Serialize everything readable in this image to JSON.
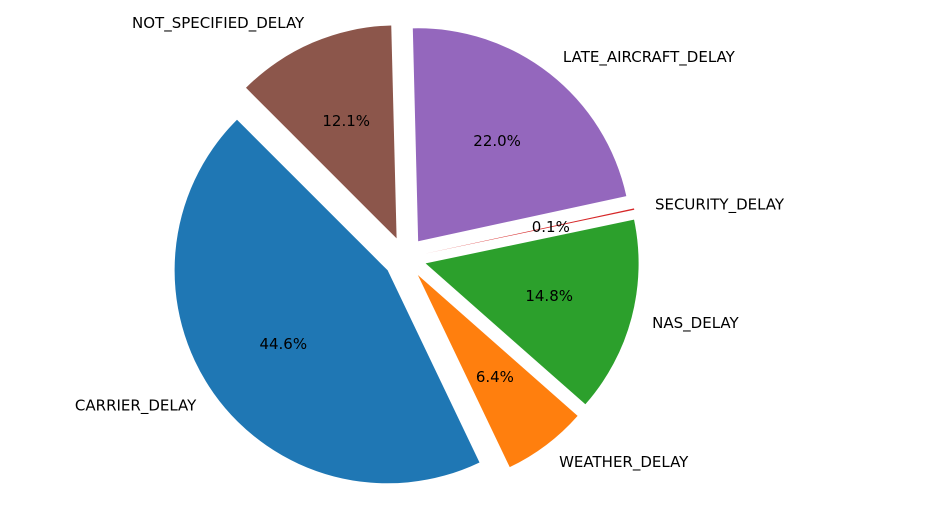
{
  "chart_data": {
    "type": "pie",
    "title": "",
    "slices": [
      {
        "label": "CARRIER_DELAY",
        "value": 44.6,
        "pct_label": "44.6%",
        "color": "#1f77b4"
      },
      {
        "label": "WEATHER_DELAY",
        "value": 6.4,
        "pct_label": "6.4%",
        "color": "#ff7f0e"
      },
      {
        "label": "NAS_DELAY",
        "value": 14.8,
        "pct_label": "14.8%",
        "color": "#2ca02c"
      },
      {
        "label": "SECURITY_DELAY",
        "value": 0.1,
        "pct_label": "0.1%",
        "color": "#d62728"
      },
      {
        "label": "LATE_AIRCRAFT_DELAY",
        "value": 22.0,
        "pct_label": "22.0%",
        "color": "#9467bd"
      },
      {
        "label": "NOT_SPECIFIED_DELAY",
        "value": 12.1,
        "pct_label": "12.1%",
        "color": "#8c564b"
      }
    ],
    "start_angle_deg": 135,
    "direction": "counterclockwise",
    "exploded": true,
    "legend": "none"
  }
}
